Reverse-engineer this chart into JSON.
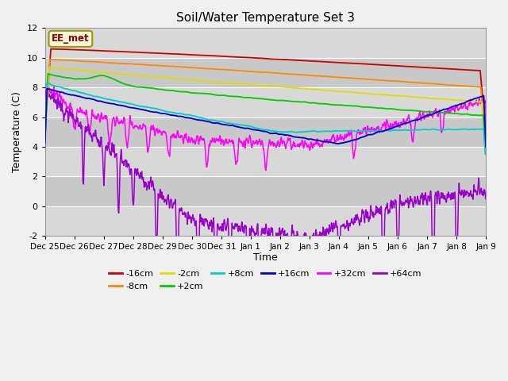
{
  "title": "Soil/Water Temperature Set 3",
  "xlabel": "Time",
  "ylabel": "Temperature (C)",
  "ylim": [
    -2,
    12
  ],
  "yticks": [
    -2,
    0,
    2,
    4,
    6,
    8,
    10,
    12
  ],
  "x_labels": [
    "Dec 25",
    "Dec 26",
    "Dec 27",
    "Dec 28",
    "Dec 29",
    "Dec 30",
    "Dec 31",
    "Jan 1",
    "Jan 2",
    "Jan 3",
    "Jan 4",
    "Jan 5",
    "Jan 6",
    "Jan 7",
    "Jan 8",
    "Jan 9"
  ],
  "annotation_text": "EE_met",
  "series_colors": {
    "-16cm": "#cc0000",
    "-8cm": "#ff8800",
    "-2cm": "#dddd00",
    "+2cm": "#00cc00",
    "+8cm": "#00cccc",
    "+16cm": "#0000cc",
    "+32cm": "#ff00ff",
    "+64cm": "#9900cc"
  },
  "bg_light": "#dcdcdc",
  "bg_dark": "#c8c8c8",
  "legend_row1": [
    "-16cm",
    "-8cm",
    "-2cm",
    "+2cm",
    "+8cm",
    "+16cm"
  ],
  "legend_row2": [
    "+32cm",
    "+64cm"
  ]
}
